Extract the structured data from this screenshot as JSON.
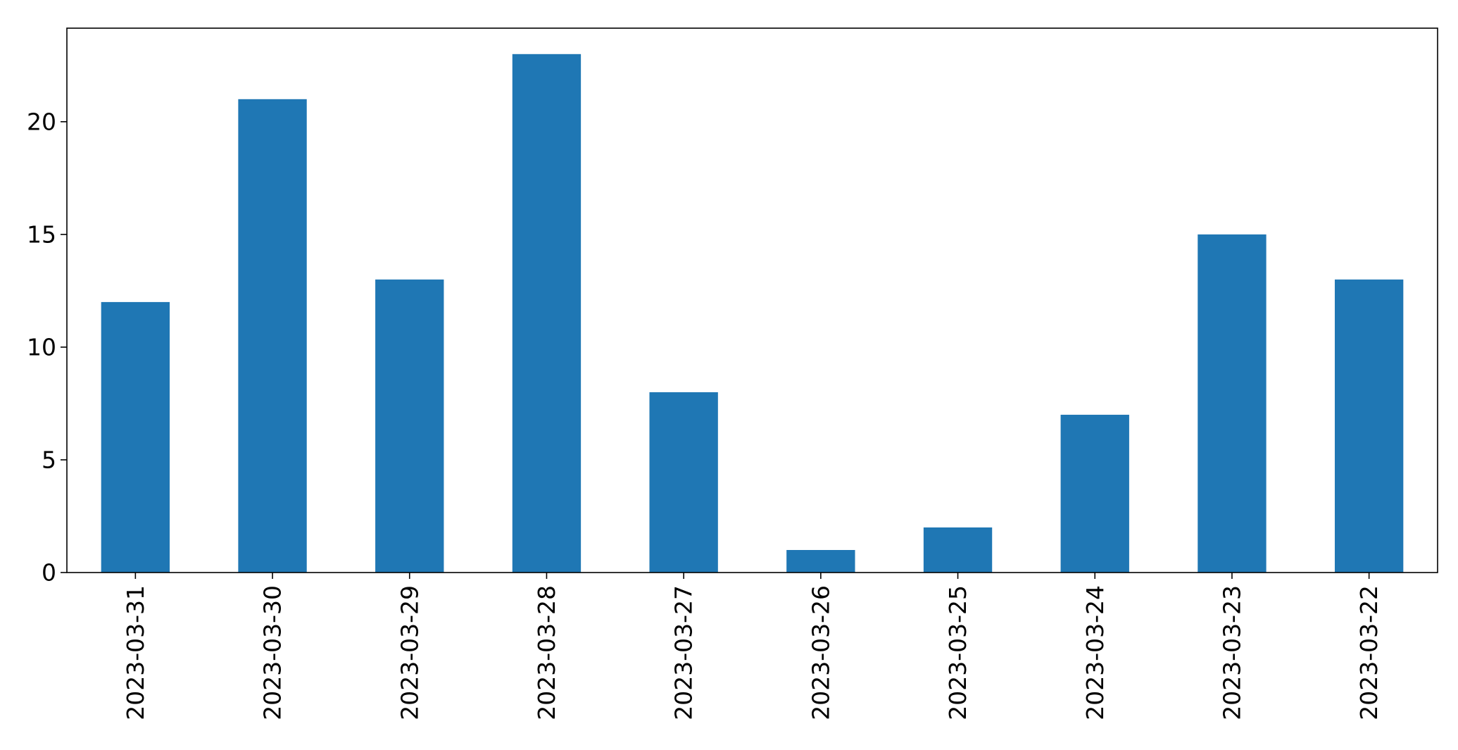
{
  "chart_data": {
    "type": "bar",
    "title": "",
    "xlabel": "",
    "ylabel": "",
    "categories": [
      "2023-03-31",
      "2023-03-30",
      "2023-03-29",
      "2023-03-28",
      "2023-03-27",
      "2023-03-26",
      "2023-03-25",
      "2023-03-24",
      "2023-03-23",
      "2023-03-22"
    ],
    "values": [
      12,
      21,
      13,
      23,
      8,
      1,
      2,
      7,
      15,
      13
    ],
    "ylim": [
      0,
      24.15
    ],
    "yticks": [
      0,
      5,
      10,
      15,
      20
    ],
    "grid": false,
    "legend": "none",
    "bar_color": "#1f77b4"
  }
}
